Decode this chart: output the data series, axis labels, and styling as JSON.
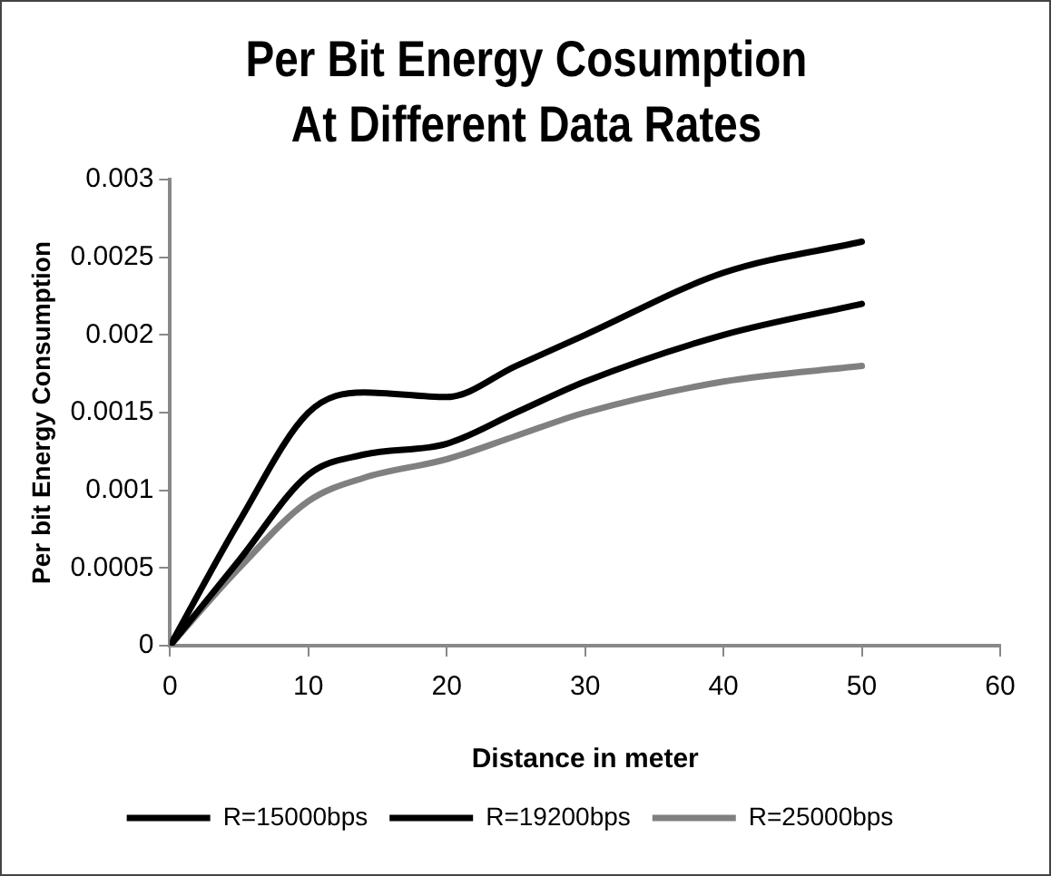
{
  "chart_data": {
    "type": "line",
    "title": "Per Bit Energy Cosumption At Different Data Rates",
    "xlabel": "Distance in meter",
    "ylabel": "Per bit Energy Consumption",
    "x": [
      0,
      5,
      10,
      14,
      20,
      25,
      30,
      40,
      50
    ],
    "series": [
      {
        "name": "R=15000bps",
        "color": "#000000",
        "values": [
          0,
          0.0008,
          0.0015,
          0.00163,
          0.0016,
          0.0018,
          0.002,
          0.0024,
          0.0026
        ]
      },
      {
        "name": "R=19200bps",
        "color": "#000000",
        "values": [
          0,
          0.00055,
          0.0011,
          0.00123,
          0.0013,
          0.0015,
          0.0017,
          0.002,
          0.0022
        ]
      },
      {
        "name": "R=25000bps",
        "color": "#808080",
        "values": [
          0,
          0.0005,
          0.00093,
          0.00108,
          0.0012,
          0.00135,
          0.0015,
          0.0017,
          0.0018
        ]
      }
    ],
    "xlim": [
      0,
      60
    ],
    "xticks": [
      0,
      10,
      20,
      30,
      40,
      50,
      60
    ],
    "ylim": [
      0,
      0.003
    ],
    "yticks": [
      0,
      0.0005,
      0.001,
      0.0015,
      0.002,
      0.0025,
      0.003
    ],
    "grid": false,
    "legend": "bottom",
    "marker": "none",
    "line_style": "solid"
  }
}
